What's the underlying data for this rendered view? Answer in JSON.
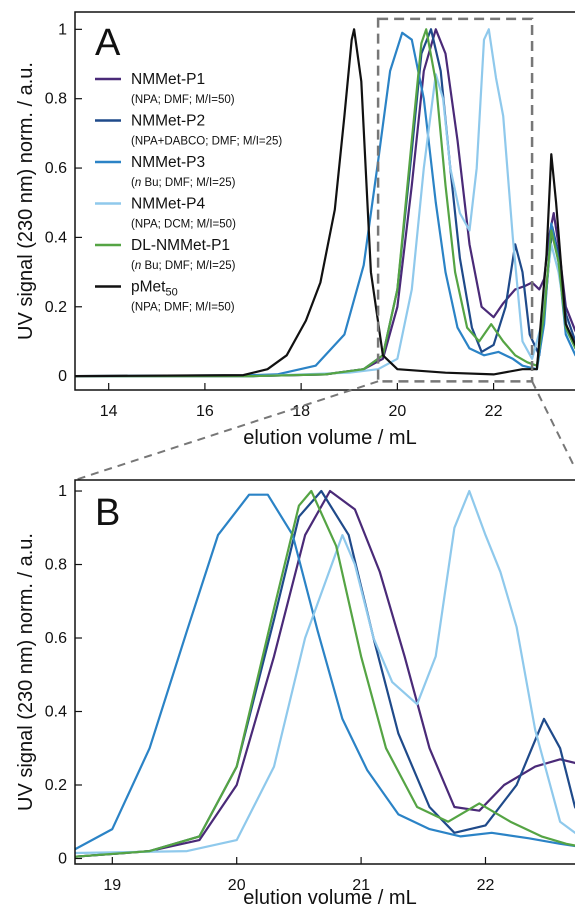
{
  "chart_data": [
    {
      "panel": "A",
      "type": "line",
      "xlabel": "elution volume / mL",
      "ylabel": "UV signal (230 nm) norm. / a.u.",
      "xlim": [
        13.3,
        23.9
      ],
      "ylim": [
        -0.04,
        1.05
      ],
      "xticks": [
        "14",
        "16",
        "18",
        "20",
        "22"
      ],
      "yticks": [
        "0",
        "0.2",
        "0.4",
        "0.6",
        "0.8",
        "1"
      ],
      "zoom_box": {
        "x": [
          19.6,
          22.8
        ],
        "y": [
          -0.015,
          1.03
        ]
      },
      "legend": [
        {
          "name": "NMMet-P1",
          "conditions": "(NPA; DMF; M/I=50)",
          "color": "#4a2a78"
        },
        {
          "name": "NMMet-P2",
          "conditions": "(NPA+DABCO; DMF; M/I=25)",
          "color": "#1f4a8a"
        },
        {
          "name": "NMMet-P3",
          "conditions_italic": "n",
          "conditions": " Bu; DMF; M/I=25)",
          "color": "#2b83c6"
        },
        {
          "name": "NMMet-P4",
          "conditions": "(NPA; DCM; M/I=50)",
          "color": "#8fc9ec"
        },
        {
          "name": "DL-NMMet-P1",
          "conditions_italic": "n",
          "conditions": " Bu; DMF; M/I=25)",
          "color": "#55a444"
        },
        {
          "name": "pMet",
          "name_sub": "50",
          "conditions": "(NPA; DMF; M/I=50)",
          "color": "#111111"
        }
      ],
      "series": [
        {
          "name": "NMMet-P1",
          "color": "#4a2a78",
          "points": [
            [
              13.3,
              0
            ],
            [
              17,
              0
            ],
            [
              18.5,
              0.005
            ],
            [
              19.3,
              0.02
            ],
            [
              19.7,
              0.05
            ],
            [
              20.0,
              0.2
            ],
            [
              20.3,
              0.55
            ],
            [
              20.55,
              0.88
            ],
            [
              20.8,
              1.0
            ],
            [
              21.0,
              0.93
            ],
            [
              21.25,
              0.68
            ],
            [
              21.5,
              0.38
            ],
            [
              21.75,
              0.2
            ],
            [
              22.0,
              0.17
            ],
            [
              22.2,
              0.21
            ],
            [
              22.45,
              0.25
            ],
            [
              22.65,
              0.26
            ],
            [
              22.8,
              0.27
            ],
            [
              22.95,
              0.25
            ],
            [
              23.05,
              0.28
            ],
            [
              23.15,
              0.4
            ],
            [
              23.25,
              0.47
            ],
            [
              23.35,
              0.38
            ],
            [
              23.5,
              0.2
            ],
            [
              23.7,
              0.13
            ],
            [
              23.9,
              0.11
            ]
          ]
        },
        {
          "name": "NMMet-P2",
          "color": "#1f4a8a",
          "points": [
            [
              13.3,
              0
            ],
            [
              17,
              0
            ],
            [
              18.5,
              0.005
            ],
            [
              19.3,
              0.02
            ],
            [
              19.7,
              0.06
            ],
            [
              20.0,
              0.25
            ],
            [
              20.3,
              0.65
            ],
            [
              20.5,
              0.93
            ],
            [
              20.7,
              1.0
            ],
            [
              20.9,
              0.88
            ],
            [
              21.1,
              0.6
            ],
            [
              21.3,
              0.34
            ],
            [
              21.55,
              0.14
            ],
            [
              21.75,
              0.07
            ],
            [
              22.0,
              0.09
            ],
            [
              22.25,
              0.2
            ],
            [
              22.45,
              0.38
            ],
            [
              22.6,
              0.3
            ],
            [
              22.75,
              0.12
            ],
            [
              22.95,
              0.06
            ],
            [
              23.1,
              0.25
            ],
            [
              23.22,
              0.43
            ],
            [
              23.35,
              0.35
            ],
            [
              23.5,
              0.18
            ],
            [
              23.7,
              0.1
            ],
            [
              23.9,
              0.08
            ]
          ]
        },
        {
          "name": "NMMet-P3",
          "color": "#2b83c6",
          "points": [
            [
              13.3,
              0
            ],
            [
              16.8,
              0.002
            ],
            [
              17.5,
              0.005
            ],
            [
              18.3,
              0.03
            ],
            [
              18.9,
              0.12
            ],
            [
              19.3,
              0.32
            ],
            [
              19.6,
              0.62
            ],
            [
              19.85,
              0.88
            ],
            [
              20.1,
              0.99
            ],
            [
              20.3,
              0.97
            ],
            [
              20.55,
              0.8
            ],
            [
              20.8,
              0.5
            ],
            [
              21.0,
              0.3
            ],
            [
              21.25,
              0.14
            ],
            [
              21.5,
              0.08
            ],
            [
              21.8,
              0.06
            ],
            [
              22.1,
              0.07
            ],
            [
              22.4,
              0.05
            ],
            [
              22.6,
              0.03
            ],
            [
              22.9,
              0.02
            ],
            [
              23.05,
              0.15
            ],
            [
              23.2,
              0.44
            ],
            [
              23.35,
              0.33
            ],
            [
              23.5,
              0.12
            ],
            [
              23.7,
              0.06
            ],
            [
              23.9,
              0.04
            ]
          ]
        },
        {
          "name": "NMMet-P4",
          "color": "#8fc9ec",
          "points": [
            [
              13.3,
              0
            ],
            [
              17,
              0
            ],
            [
              19,
              0.01
            ],
            [
              19.6,
              0.02
            ],
            [
              20.0,
              0.05
            ],
            [
              20.3,
              0.25
            ],
            [
              20.55,
              0.6
            ],
            [
              20.8,
              0.87
            ],
            [
              20.95,
              0.8
            ],
            [
              21.1,
              0.6
            ],
            [
              21.3,
              0.47
            ],
            [
              21.5,
              0.42
            ],
            [
              21.65,
              0.6
            ],
            [
              21.8,
              0.97
            ],
            [
              21.9,
              1.0
            ],
            [
              22.05,
              0.86
            ],
            [
              22.2,
              0.75
            ],
            [
              22.4,
              0.4
            ],
            [
              22.6,
              0.1
            ],
            [
              22.8,
              0.05
            ],
            [
              23.0,
              0.15
            ],
            [
              23.2,
              0.38
            ],
            [
              23.35,
              0.3
            ],
            [
              23.55,
              0.12
            ],
            [
              23.9,
              0.05
            ]
          ]
        },
        {
          "name": "DL-NMMet-P1",
          "color": "#55a444",
          "points": [
            [
              13.3,
              0
            ],
            [
              17,
              0
            ],
            [
              18.5,
              0.005
            ],
            [
              19.3,
              0.02
            ],
            [
              19.7,
              0.06
            ],
            [
              20.0,
              0.25
            ],
            [
              20.3,
              0.68
            ],
            [
              20.5,
              0.96
            ],
            [
              20.6,
              1.0
            ],
            [
              20.8,
              0.85
            ],
            [
              21.0,
              0.55
            ],
            [
              21.2,
              0.3
            ],
            [
              21.45,
              0.14
            ],
            [
              21.7,
              0.1
            ],
            [
              21.95,
              0.15
            ],
            [
              22.2,
              0.1
            ],
            [
              22.45,
              0.06
            ],
            [
              22.7,
              0.04
            ],
            [
              22.9,
              0.03
            ],
            [
              23.05,
              0.18
            ],
            [
              23.2,
              0.42
            ],
            [
              23.35,
              0.33
            ],
            [
              23.5,
              0.14
            ],
            [
              23.7,
              0.08
            ],
            [
              23.9,
              0.06
            ]
          ]
        },
        {
          "name": "pMet50",
          "color": "#111111",
          "points": [
            [
              13.3,
              0
            ],
            [
              16.8,
              0.003
            ],
            [
              17.3,
              0.02
            ],
            [
              17.7,
              0.06
            ],
            [
              18.1,
              0.16
            ],
            [
              18.4,
              0.27
            ],
            [
              18.7,
              0.48
            ],
            [
              18.9,
              0.75
            ],
            [
              19.05,
              0.97
            ],
            [
              19.1,
              1.0
            ],
            [
              19.25,
              0.85
            ],
            [
              19.45,
              0.3
            ],
            [
              19.7,
              0.06
            ],
            [
              20.0,
              0.02
            ],
            [
              21.0,
              0.01
            ],
            [
              22.0,
              0.005
            ],
            [
              22.6,
              0.02
            ],
            [
              22.9,
              0.02
            ],
            [
              23.1,
              0.35
            ],
            [
              23.2,
              0.64
            ],
            [
              23.3,
              0.5
            ],
            [
              23.5,
              0.15
            ],
            [
              23.9,
              0.03
            ]
          ]
        }
      ]
    },
    {
      "panel": "B",
      "type": "line",
      "xlabel": "elution volume / mL",
      "ylabel": "UV signal (230 nm) norm. / a.u.",
      "xlim": [
        18.7,
        22.8
      ],
      "ylim": [
        -0.015,
        1.03
      ],
      "xticks": [
        "19",
        "20",
        "21",
        "22"
      ],
      "yticks": [
        "0",
        "0.2",
        "0.4",
        "0.6",
        "0.8",
        "1"
      ],
      "series": [
        {
          "name": "NMMet-P1",
          "color": "#4a2a78",
          "points": [
            [
              18.7,
              0.005
            ],
            [
              19.3,
              0.02
            ],
            [
              19.7,
              0.05
            ],
            [
              20.0,
              0.2
            ],
            [
              20.3,
              0.55
            ],
            [
              20.55,
              0.88
            ],
            [
              20.75,
              1.0
            ],
            [
              20.95,
              0.95
            ],
            [
              21.15,
              0.78
            ],
            [
              21.35,
              0.55
            ],
            [
              21.55,
              0.3
            ],
            [
              21.75,
              0.14
            ],
            [
              21.95,
              0.13
            ],
            [
              22.15,
              0.2
            ],
            [
              22.4,
              0.25
            ],
            [
              22.6,
              0.27
            ],
            [
              22.72,
              0.26
            ],
            [
              22.8,
              0.24
            ]
          ]
        },
        {
          "name": "NMMet-P2",
          "color": "#1f4a8a",
          "points": [
            [
              18.7,
              0.005
            ],
            [
              19.3,
              0.02
            ],
            [
              19.7,
              0.06
            ],
            [
              20.0,
              0.25
            ],
            [
              20.3,
              0.65
            ],
            [
              20.5,
              0.93
            ],
            [
              20.68,
              1.0
            ],
            [
              20.9,
              0.88
            ],
            [
              21.1,
              0.6
            ],
            [
              21.3,
              0.34
            ],
            [
              21.55,
              0.14
            ],
            [
              21.75,
              0.07
            ],
            [
              22.0,
              0.09
            ],
            [
              22.25,
              0.2
            ],
            [
              22.47,
              0.38
            ],
            [
              22.6,
              0.3
            ],
            [
              22.72,
              0.14
            ],
            [
              22.8,
              0.1
            ]
          ]
        },
        {
          "name": "NMMet-P3",
          "color": "#2b83c6",
          "points": [
            [
              18.7,
              0.025
            ],
            [
              19.0,
              0.08
            ],
            [
              19.3,
              0.3
            ],
            [
              19.6,
              0.62
            ],
            [
              19.85,
              0.88
            ],
            [
              20.1,
              0.99
            ],
            [
              20.25,
              0.99
            ],
            [
              20.45,
              0.88
            ],
            [
              20.65,
              0.62
            ],
            [
              20.85,
              0.38
            ],
            [
              21.05,
              0.24
            ],
            [
              21.3,
              0.12
            ],
            [
              21.55,
              0.08
            ],
            [
              21.8,
              0.06
            ],
            [
              22.05,
              0.07
            ],
            [
              22.35,
              0.055
            ],
            [
              22.6,
              0.04
            ],
            [
              22.8,
              0.03
            ]
          ]
        },
        {
          "name": "NMMet-P4",
          "color": "#8fc9ec",
          "points": [
            [
              18.7,
              0.015
            ],
            [
              19.6,
              0.02
            ],
            [
              20.0,
              0.05
            ],
            [
              20.3,
              0.25
            ],
            [
              20.55,
              0.6
            ],
            [
              20.85,
              0.88
            ],
            [
              20.95,
              0.8
            ],
            [
              21.1,
              0.6
            ],
            [
              21.25,
              0.48
            ],
            [
              21.45,
              0.42
            ],
            [
              21.6,
              0.55
            ],
            [
              21.75,
              0.9
            ],
            [
              21.87,
              1.0
            ],
            [
              22.0,
              0.88
            ],
            [
              22.12,
              0.78
            ],
            [
              22.25,
              0.63
            ],
            [
              22.4,
              0.35
            ],
            [
              22.6,
              0.1
            ],
            [
              22.8,
              0.05
            ]
          ]
        },
        {
          "name": "DL-NMMet-P1",
          "color": "#55a444",
          "points": [
            [
              18.7,
              0.005
            ],
            [
              19.3,
              0.02
            ],
            [
              19.7,
              0.06
            ],
            [
              20.0,
              0.25
            ],
            [
              20.3,
              0.68
            ],
            [
              20.5,
              0.96
            ],
            [
              20.6,
              1.0
            ],
            [
              20.8,
              0.85
            ],
            [
              21.0,
              0.55
            ],
            [
              21.2,
              0.3
            ],
            [
              21.45,
              0.14
            ],
            [
              21.7,
              0.1
            ],
            [
              21.95,
              0.15
            ],
            [
              22.2,
              0.1
            ],
            [
              22.45,
              0.06
            ],
            [
              22.65,
              0.04
            ],
            [
              22.8,
              0.03
            ]
          ]
        }
      ]
    }
  ]
}
